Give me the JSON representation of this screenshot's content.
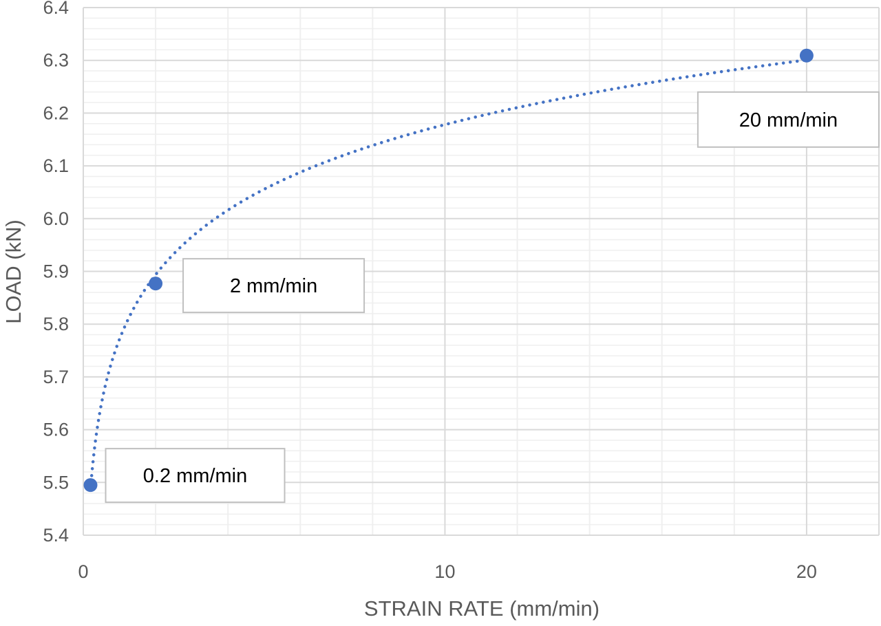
{
  "chart_data": {
    "type": "scatter",
    "title": "",
    "xlabel": "STRAIN RATE (mm/min)",
    "ylabel": "LOAD (kN)",
    "xlim": [
      0,
      22
    ],
    "ylim": [
      5.4,
      6.4
    ],
    "x_ticks": [
      "0",
      "10",
      "20"
    ],
    "y_ticks": [
      "5.4",
      "5.5",
      "5.6",
      "5.7",
      "5.8",
      "5.9",
      "6.0",
      "6.1",
      "6.2",
      "6.3",
      "6.4"
    ],
    "grid": true,
    "trendline": "logarithmic",
    "series": [
      {
        "x": [
          0.2,
          2,
          20
        ],
        "y": [
          5.495,
          5.877,
          6.309
        ],
        "point_labels": [
          "0.2 mm/min",
          "2 mm/min",
          "20 mm/min"
        ]
      }
    ],
    "colors": {
      "marker": "#4472C4",
      "trendline": "#4472C4",
      "major_grid": "#d9d9d9",
      "minor_grid": "#efefef",
      "text": "#595959"
    }
  }
}
